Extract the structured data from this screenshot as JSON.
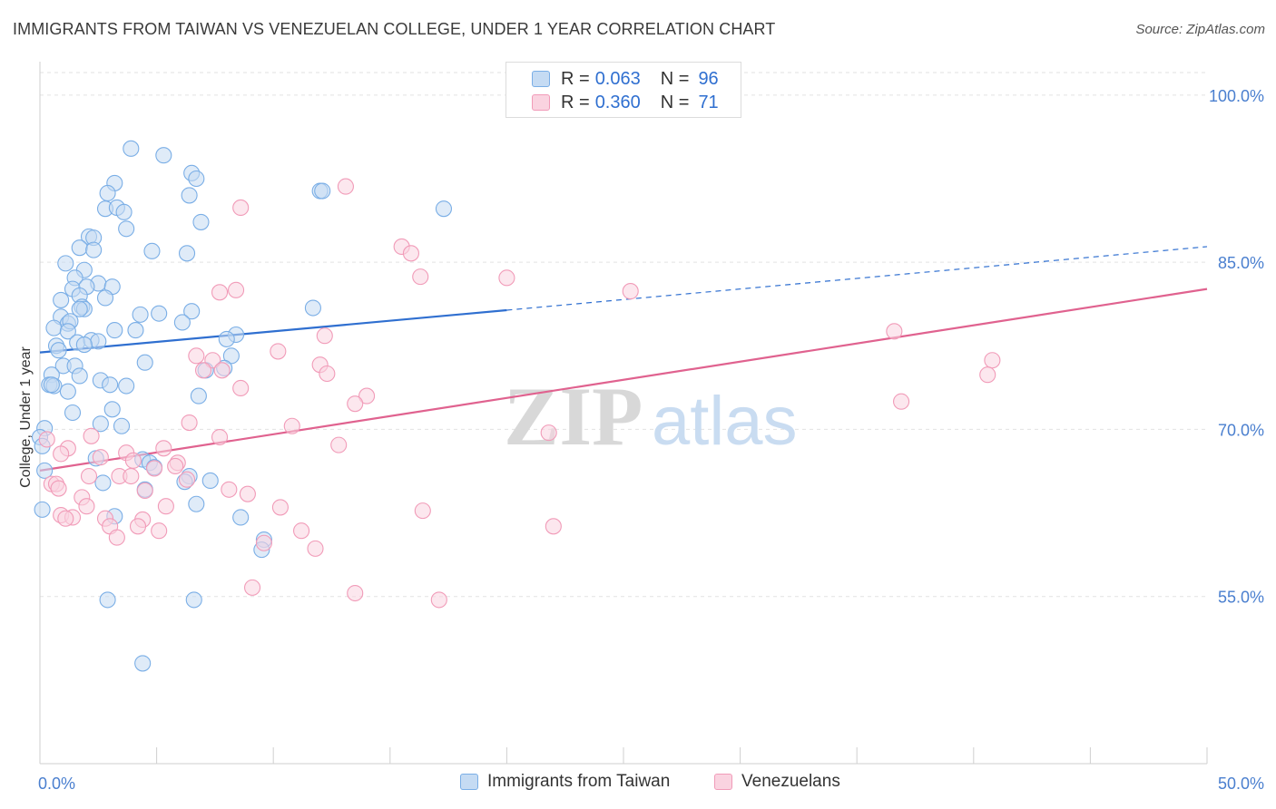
{
  "chart_data": {
    "type": "scatter",
    "title": "IMMIGRANTS FROM TAIWAN VS VENEZUELAN COLLEGE, UNDER 1 YEAR CORRELATION CHART",
    "source": "Source: ZipAtlas.com",
    "xlabel": "",
    "ylabel": "College, Under 1 year",
    "xlim": [
      0,
      50
    ],
    "ylim": [
      40,
      103
    ],
    "x_tick_labels": [
      "0.0%",
      "50.0%"
    ],
    "y_tick_labels": [
      "100.0%",
      "85.0%",
      "70.0%",
      "55.0%"
    ],
    "y_ticks": [
      100,
      85,
      70,
      55
    ],
    "grid": true,
    "watermark": "ZIPatlas",
    "legend": {
      "position": "top-center",
      "entries": [
        {
          "r_label": "R =",
          "r_value": "0.063",
          "n_label": "N =",
          "n_value": "96"
        },
        {
          "r_label": "R =",
          "r_value": "0.360",
          "n_label": "N =",
          "n_value": "71"
        }
      ]
    },
    "series": [
      {
        "name": "Immigrants from Taiwan",
        "color": "#7aaee6",
        "fill": "#c5dbf3",
        "trend": {
          "x0": 0,
          "y0": 76.9,
          "x1": 20,
          "y1": 80.7,
          "dash_to_x": 50,
          "dash_to_y": 86.4,
          "color": "#2f6fd0"
        },
        "points": [
          [
            3.9,
            95.2
          ],
          [
            5.3,
            94.6
          ],
          [
            6.5,
            93.0
          ],
          [
            6.7,
            92.5
          ],
          [
            3.2,
            92.1
          ],
          [
            12.0,
            91.4
          ],
          [
            12.1,
            91.4
          ],
          [
            2.9,
            91.2
          ],
          [
            6.4,
            91.0
          ],
          [
            17.3,
            89.8
          ],
          [
            2.8,
            89.8
          ],
          [
            3.3,
            89.9
          ],
          [
            3.6,
            89.5
          ],
          [
            6.9,
            88.6
          ],
          [
            3.7,
            88.0
          ],
          [
            2.1,
            87.3
          ],
          [
            2.3,
            87.2
          ],
          [
            1.7,
            86.3
          ],
          [
            2.3,
            86.1
          ],
          [
            4.8,
            86.0
          ],
          [
            6.3,
            85.8
          ],
          [
            1.1,
            84.9
          ],
          [
            1.9,
            84.3
          ],
          [
            1.5,
            83.6
          ],
          [
            2.5,
            83.1
          ],
          [
            3.1,
            82.8
          ],
          [
            1.4,
            82.6
          ],
          [
            2.0,
            82.8
          ],
          [
            1.7,
            82.0
          ],
          [
            2.8,
            81.8
          ],
          [
            0.9,
            81.6
          ],
          [
            1.8,
            81.0
          ],
          [
            1.9,
            80.8
          ],
          [
            1.7,
            80.8
          ],
          [
            11.7,
            80.9
          ],
          [
            4.3,
            80.3
          ],
          [
            5.1,
            80.4
          ],
          [
            6.5,
            80.6
          ],
          [
            0.9,
            80.1
          ],
          [
            1.2,
            79.5
          ],
          [
            1.3,
            79.7
          ],
          [
            0.6,
            79.1
          ],
          [
            1.2,
            78.8
          ],
          [
            3.2,
            78.9
          ],
          [
            4.1,
            78.9
          ],
          [
            6.1,
            79.6
          ],
          [
            8.4,
            78.5
          ],
          [
            8.0,
            78.1
          ],
          [
            1.6,
            77.8
          ],
          [
            2.2,
            78.0
          ],
          [
            2.5,
            77.9
          ],
          [
            1.9,
            77.6
          ],
          [
            0.7,
            77.5
          ],
          [
            0.8,
            77.1
          ],
          [
            8.2,
            76.6
          ],
          [
            4.5,
            76.0
          ],
          [
            1.0,
            75.7
          ],
          [
            1.5,
            75.7
          ],
          [
            7.1,
            75.3
          ],
          [
            7.9,
            75.5
          ],
          [
            0.5,
            74.9
          ],
          [
            1.7,
            74.8
          ],
          [
            2.6,
            74.4
          ],
          [
            0.4,
            74.0
          ],
          [
            0.6,
            73.9
          ],
          [
            0.5,
            74.0
          ],
          [
            3.0,
            74.0
          ],
          [
            3.7,
            73.9
          ],
          [
            1.2,
            73.4
          ],
          [
            6.8,
            73.0
          ],
          [
            3.1,
            71.8
          ],
          [
            1.4,
            71.5
          ],
          [
            2.6,
            70.5
          ],
          [
            3.5,
            70.3
          ],
          [
            0.2,
            70.1
          ],
          [
            0.0,
            69.3
          ],
          [
            0.1,
            68.5
          ],
          [
            2.4,
            67.4
          ],
          [
            4.4,
            67.3
          ],
          [
            4.7,
            67.0
          ],
          [
            4.9,
            66.6
          ],
          [
            0.2,
            66.3
          ],
          [
            6.4,
            65.8
          ],
          [
            7.3,
            65.4
          ],
          [
            6.2,
            65.3
          ],
          [
            2.7,
            65.2
          ],
          [
            4.5,
            64.6
          ],
          [
            6.7,
            63.3
          ],
          [
            0.1,
            62.8
          ],
          [
            3.2,
            62.2
          ],
          [
            8.6,
            62.1
          ],
          [
            9.6,
            60.1
          ],
          [
            9.5,
            59.2
          ],
          [
            2.9,
            54.7
          ],
          [
            6.6,
            54.7
          ],
          [
            4.4,
            49.0
          ]
        ]
      },
      {
        "name": "Venezuelans",
        "color": "#f19bb8",
        "fill": "#fad3e0",
        "trend": {
          "x0": 0,
          "y0": 66.3,
          "x1": 50,
          "y1": 82.6,
          "color": "#e0628f"
        },
        "points": [
          [
            13.1,
            91.8
          ],
          [
            8.6,
            89.9
          ],
          [
            15.5,
            86.4
          ],
          [
            15.9,
            85.8
          ],
          [
            16.3,
            83.7
          ],
          [
            20.0,
            83.6
          ],
          [
            8.4,
            82.5
          ],
          [
            7.7,
            82.3
          ],
          [
            25.3,
            82.4
          ],
          [
            36.6,
            78.8
          ],
          [
            12.2,
            78.4
          ],
          [
            10.2,
            77.0
          ],
          [
            6.7,
            76.6
          ],
          [
            7.4,
            76.2
          ],
          [
            40.8,
            76.2
          ],
          [
            12.0,
            75.8
          ],
          [
            7.0,
            75.3
          ],
          [
            7.8,
            75.3
          ],
          [
            12.3,
            75.0
          ],
          [
            40.6,
            74.9
          ],
          [
            8.6,
            73.7
          ],
          [
            14.0,
            73.0
          ],
          [
            13.5,
            72.3
          ],
          [
            36.9,
            72.5
          ],
          [
            6.4,
            70.6
          ],
          [
            10.8,
            70.3
          ],
          [
            21.8,
            69.7
          ],
          [
            2.2,
            69.4
          ],
          [
            7.7,
            69.3
          ],
          [
            0.3,
            69.1
          ],
          [
            12.8,
            68.6
          ],
          [
            5.3,
            68.3
          ],
          [
            1.2,
            68.3
          ],
          [
            0.9,
            67.8
          ],
          [
            3.7,
            67.9
          ],
          [
            2.6,
            67.5
          ],
          [
            4.0,
            67.2
          ],
          [
            5.9,
            67.0
          ],
          [
            5.8,
            66.7
          ],
          [
            4.9,
            66.5
          ],
          [
            3.4,
            65.8
          ],
          [
            2.1,
            65.8
          ],
          [
            3.9,
            65.8
          ],
          [
            6.3,
            65.5
          ],
          [
            0.5,
            65.1
          ],
          [
            0.7,
            65.1
          ],
          [
            0.8,
            64.7
          ],
          [
            8.1,
            64.6
          ],
          [
            4.5,
            64.5
          ],
          [
            8.9,
            64.2
          ],
          [
            1.8,
            63.9
          ],
          [
            2.0,
            63.1
          ],
          [
            5.4,
            63.1
          ],
          [
            10.3,
            63.0
          ],
          [
            16.4,
            62.7
          ],
          [
            0.9,
            62.3
          ],
          [
            1.4,
            62.1
          ],
          [
            1.1,
            62.0
          ],
          [
            2.8,
            62.0
          ],
          [
            4.4,
            61.9
          ],
          [
            3.0,
            61.3
          ],
          [
            4.2,
            61.3
          ],
          [
            22.0,
            61.3
          ],
          [
            11.2,
            60.9
          ],
          [
            5.1,
            60.9
          ],
          [
            3.3,
            60.3
          ],
          [
            9.6,
            59.8
          ],
          [
            11.8,
            59.3
          ],
          [
            9.1,
            55.8
          ],
          [
            13.5,
            55.3
          ],
          [
            17.1,
            54.7
          ]
        ]
      }
    ]
  }
}
